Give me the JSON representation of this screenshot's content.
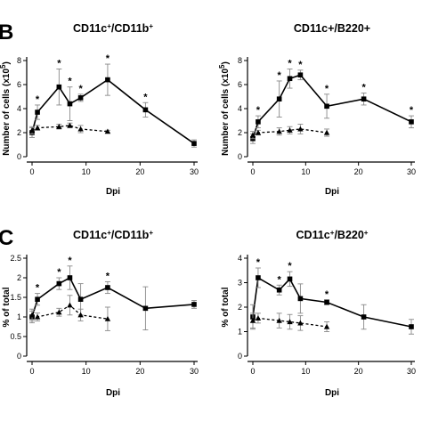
{
  "panel_labels": [
    "B",
    "C"
  ],
  "chart_data": [
    {
      "type": "line",
      "panel": "B",
      "title_main": "CD11c",
      "title_sup1": "+",
      "title_mid": "/CD11b",
      "title_sup2": "+",
      "ylabel_main": "Number of cells (x10",
      "ylabel_sup": "5",
      "ylabel_end": ")",
      "xlabel": "Dpi",
      "xlim": [
        0,
        30
      ],
      "ylim": [
        0,
        8
      ],
      "xticks": [
        0,
        10,
        20,
        30
      ],
      "yticks": [
        0,
        2,
        4,
        6,
        8
      ],
      "series": [
        {
          "style": "solid-square",
          "points": [
            {
              "x": 0,
              "y": 2.0,
              "err": 0.4
            },
            {
              "x": 1,
              "y": 3.7,
              "err": 0.6
            },
            {
              "x": 5,
              "y": 5.8,
              "err": 1.5
            },
            {
              "x": 7,
              "y": 4.4,
              "err": 1.4
            },
            {
              "x": 9,
              "y": 4.9,
              "err": 0.3
            },
            {
              "x": 14,
              "y": 6.4,
              "err": 1.3
            },
            {
              "x": 21,
              "y": 3.9,
              "err": 0.6
            },
            {
              "x": 30,
              "y": 1.1,
              "err": 0.3
            }
          ]
        },
        {
          "style": "dashed-triangle",
          "points": [
            {
              "x": 0,
              "y": 2.2,
              "err": 0.3
            },
            {
              "x": 1,
              "y": 2.4,
              "err": 0.2
            },
            {
              "x": 5,
              "y": 2.5,
              "err": 0.2
            },
            {
              "x": 7,
              "y": 2.6,
              "err": 0.2
            },
            {
              "x": 9,
              "y": 2.3,
              "err": 0.3
            },
            {
              "x": 14,
              "y": 2.1,
              "err": 0.1
            }
          ]
        }
      ],
      "significance_x": [
        1,
        5,
        7,
        9,
        14,
        21
      ]
    },
    {
      "type": "line",
      "panel": "B",
      "title_main": "CD11c+/B220+",
      "title_sup1": "",
      "title_mid": "",
      "title_sup2": "",
      "ylabel_main": "Number of cells (x10",
      "ylabel_sup": "5",
      "ylabel_end": ")",
      "xlabel": "Dpi",
      "xlim": [
        0,
        30
      ],
      "ylim": [
        0,
        8
      ],
      "xticks": [
        0,
        10,
        20,
        30
      ],
      "yticks": [
        0,
        2,
        4,
        6,
        8
      ],
      "series": [
        {
          "style": "solid-square",
          "points": [
            {
              "x": 0,
              "y": 1.5,
              "err": 0.4
            },
            {
              "x": 1,
              "y": 2.9,
              "err": 0.5
            },
            {
              "x": 5,
              "y": 4.8,
              "err": 1.5
            },
            {
              "x": 7,
              "y": 6.5,
              "err": 0.8
            },
            {
              "x": 9,
              "y": 6.8,
              "err": 0.4
            },
            {
              "x": 14,
              "y": 4.2,
              "err": 1.0
            },
            {
              "x": 21,
              "y": 4.8,
              "err": 0.5
            },
            {
              "x": 30,
              "y": 2.9,
              "err": 0.5
            }
          ]
        },
        {
          "style": "dashed-triangle",
          "points": [
            {
              "x": 0,
              "y": 1.8,
              "err": 0.3
            },
            {
              "x": 1,
              "y": 2.0,
              "err": 0.2
            },
            {
              "x": 5,
              "y": 2.1,
              "err": 0.3
            },
            {
              "x": 7,
              "y": 2.2,
              "err": 0.3
            },
            {
              "x": 9,
              "y": 2.3,
              "err": 0.4
            },
            {
              "x": 14,
              "y": 2.0,
              "err": 0.3
            }
          ]
        }
      ],
      "significance_x": [
        1,
        5,
        7,
        9,
        14,
        21,
        30
      ]
    },
    {
      "type": "line",
      "panel": "C",
      "title_main": "CD11c",
      "title_sup1": "+",
      "title_mid": "/CD11b",
      "title_sup2": "+",
      "ylabel_main": "% of total",
      "ylabel_sup": "",
      "ylabel_end": "",
      "xlabel": "Dpi",
      "xlim": [
        0,
        30
      ],
      "ylim": [
        0,
        2.5
      ],
      "xticks": [
        0,
        10,
        20,
        30
      ],
      "yticks": [
        0,
        0.5,
        1.0,
        1.5,
        2.0,
        2.5
      ],
      "series": [
        {
          "style": "solid-square",
          "points": [
            {
              "x": 0,
              "y": 1.0,
              "err": 0.15
            },
            {
              "x": 1,
              "y": 1.45,
              "err": 0.15
            },
            {
              "x": 5,
              "y": 1.85,
              "err": 0.15
            },
            {
              "x": 7,
              "y": 2.0,
              "err": 0.3
            },
            {
              "x": 9,
              "y": 1.45,
              "err": 0.4
            },
            {
              "x": 14,
              "y": 1.75,
              "err": 0.15
            },
            {
              "x": 21,
              "y": 1.22,
              "err": 0.55
            },
            {
              "x": 30,
              "y": 1.32,
              "err": 0.1
            }
          ]
        },
        {
          "style": "dashed-triangle",
          "points": [
            {
              "x": 0,
              "y": 1.05,
              "err": 0.15
            },
            {
              "x": 1,
              "y": 1.0,
              "err": 0.1
            },
            {
              "x": 5,
              "y": 1.12,
              "err": 0.1
            },
            {
              "x": 7,
              "y": 1.3,
              "err": 0.25
            },
            {
              "x": 9,
              "y": 1.05,
              "err": 0.15
            },
            {
              "x": 14,
              "y": 0.95,
              "err": 0.3
            }
          ]
        }
      ],
      "significance_x": [
        1,
        5,
        7,
        14
      ]
    },
    {
      "type": "line",
      "panel": "C",
      "title_main": "CD11c",
      "title_sup1": "+",
      "title_mid": "/B220",
      "title_sup2": "+",
      "ylabel_main": "% of total",
      "ylabel_sup": "",
      "ylabel_end": "",
      "xlabel": "Dpi",
      "xlim": [
        0,
        30
      ],
      "ylim": [
        0,
        4
      ],
      "xticks": [
        0,
        10,
        20,
        30
      ],
      "yticks": [
        0,
        1,
        2,
        3,
        4
      ],
      "series": [
        {
          "style": "solid-square",
          "points": [
            {
              "x": 0,
              "y": 1.6,
              "err": 0.5
            },
            {
              "x": 1,
              "y": 3.2,
              "err": 0.4
            },
            {
              "x": 5,
              "y": 2.7,
              "err": 0.2
            },
            {
              "x": 7,
              "y": 3.15,
              "err": 0.3
            },
            {
              "x": 9,
              "y": 2.35,
              "err": 0.6
            },
            {
              "x": 14,
              "y": 2.2,
              "err": 0.1
            },
            {
              "x": 21,
              "y": 1.6,
              "err": 0.5
            },
            {
              "x": 30,
              "y": 1.2,
              "err": 0.3
            }
          ]
        },
        {
          "style": "dashed-triangle",
          "points": [
            {
              "x": 0,
              "y": 1.45,
              "err": 0.3
            },
            {
              "x": 1,
              "y": 1.55,
              "err": 0.2
            },
            {
              "x": 5,
              "y": 1.45,
              "err": 0.3
            },
            {
              "x": 7,
              "y": 1.4,
              "err": 0.3
            },
            {
              "x": 9,
              "y": 1.35,
              "err": 0.3
            },
            {
              "x": 14,
              "y": 1.2,
              "err": 0.2
            }
          ]
        }
      ],
      "significance_x": [
        1,
        5,
        7,
        14
      ]
    }
  ]
}
